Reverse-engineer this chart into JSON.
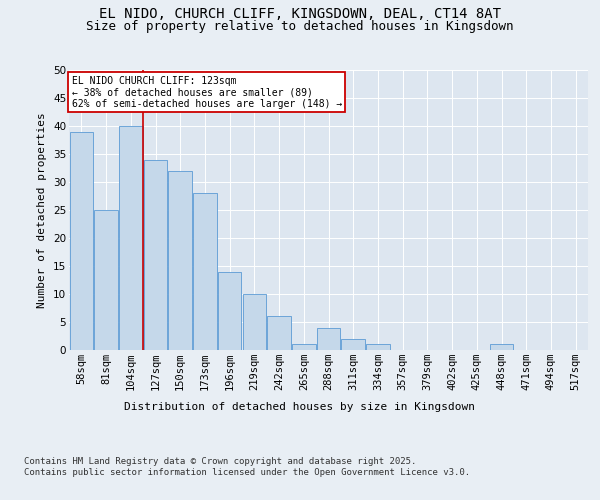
{
  "title1": "EL NIDO, CHURCH CLIFF, KINGSDOWN, DEAL, CT14 8AT",
  "title2": "Size of property relative to detached houses in Kingsdown",
  "xlabel": "Distribution of detached houses by size in Kingsdown",
  "ylabel": "Number of detached properties",
  "categories": [
    "58sqm",
    "81sqm",
    "104sqm",
    "127sqm",
    "150sqm",
    "173sqm",
    "196sqm",
    "219sqm",
    "242sqm",
    "265sqm",
    "288sqm",
    "311sqm",
    "334sqm",
    "357sqm",
    "379sqm",
    "402sqm",
    "425sqm",
    "448sqm",
    "471sqm",
    "494sqm",
    "517sqm"
  ],
  "values": [
    39,
    25,
    40,
    34,
    32,
    28,
    14,
    10,
    6,
    1,
    4,
    2,
    1,
    0,
    0,
    0,
    0,
    1,
    0,
    0,
    0
  ],
  "bar_color": "#c5d8ea",
  "bar_edge_color": "#5b9bd5",
  "vline_x": 3,
  "vline_color": "#cc0000",
  "annotation_text": "EL NIDO CHURCH CLIFF: 123sqm\n← 38% of detached houses are smaller (89)\n62% of semi-detached houses are larger (148) →",
  "annotation_box_color": "#ffffff",
  "annotation_box_edge": "#cc0000",
  "ylim": [
    0,
    50
  ],
  "yticks": [
    0,
    5,
    10,
    15,
    20,
    25,
    30,
    35,
    40,
    45,
    50
  ],
  "bg_color": "#e8eef4",
  "plot_bg_color": "#dde6f0",
  "footer": "Contains HM Land Registry data © Crown copyright and database right 2025.\nContains public sector information licensed under the Open Government Licence v3.0.",
  "title_fontsize": 10,
  "subtitle_fontsize": 9,
  "axis_label_fontsize": 8,
  "tick_fontsize": 7.5,
  "footer_fontsize": 6.5,
  "ann_fontsize": 7
}
